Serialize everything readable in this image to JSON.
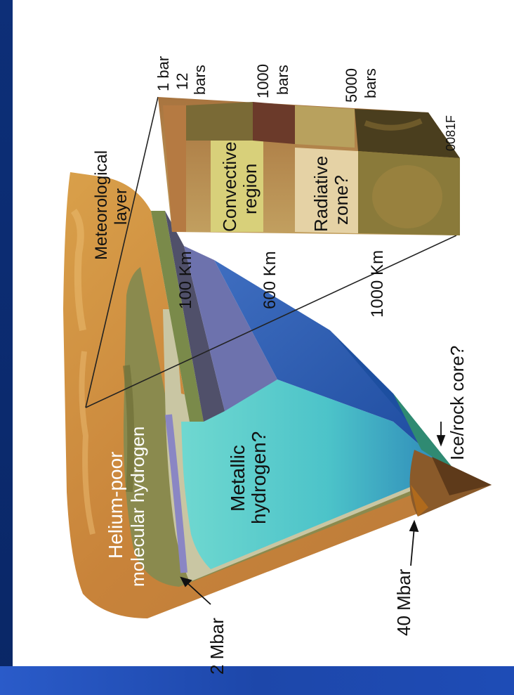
{
  "labels": {
    "one_bar": "1 bar",
    "twelve_bars_num": "12",
    "twelve_bars_unit": "bars",
    "thousand_bars_num": "1000",
    "thousand_bars_unit": "bars",
    "five_thousand_bars_num": "5000",
    "five_thousand_bars_unit": "bars",
    "code": "0081F",
    "meteorological_1": "Meteorological",
    "meteorological_2": "layer",
    "convective_1": "Convective",
    "convective_2": "region",
    "radiative_1": "Radiative",
    "radiative_2": "zone?",
    "km_100": "100 Km",
    "km_600": "600 Km",
    "km_1000": "1000 Km",
    "helium_1": "Helium-poor",
    "helium_2": "molecular hydrogen",
    "metallic_1": "Metallic",
    "metallic_2": "hydrogen?",
    "ice_core": "Ice/rock core?",
    "two_mbar": "2 Mbar",
    "forty_mbar": "40 Mbar"
  },
  "colors": {
    "frame_blue": "#0b2a6e",
    "bar_blue": "#1f4db5",
    "panel": "#ffffff"
  }
}
